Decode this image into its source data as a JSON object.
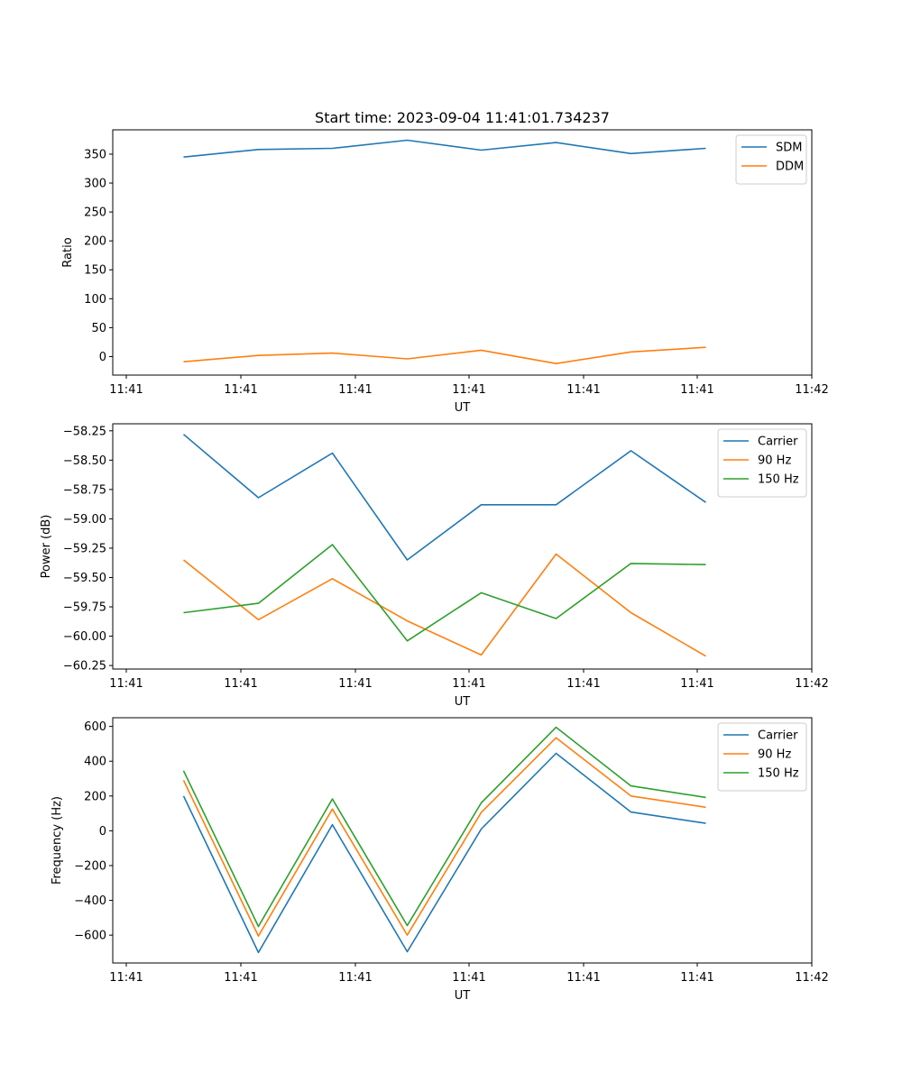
{
  "chart_data": [
    {
      "type": "line",
      "title": "Start time: 2023-09-04 11:41:01.734237",
      "xlabel": "UT",
      "ylabel": "Ratio",
      "x_tick_labels": [
        "11:41",
        "11:41",
        "11:41",
        "11:41",
        "11:41",
        "11:41",
        "11:42"
      ],
      "y_ticks": [
        0,
        50,
        100,
        150,
        200,
        250,
        300,
        350
      ],
      "y_tick_labels": [
        "0",
        "50",
        "100",
        "150",
        "200",
        "250",
        "300",
        "350"
      ],
      "ylim": [
        -32,
        392
      ],
      "series": [
        {
          "name": "SDM",
          "color": "#1f77b4",
          "values": [
            345,
            358,
            360,
            374,
            357,
            370,
            351,
            360
          ]
        },
        {
          "name": "DDM",
          "color": "#ff7f0e",
          "values": [
            -9,
            2,
            6,
            -4,
            11,
            -12,
            8,
            16
          ]
        }
      ],
      "legend": "upper right"
    },
    {
      "type": "line",
      "title": "",
      "xlabel": "UT",
      "ylabel": "Power (dB)",
      "x_tick_labels": [
        "11:41",
        "11:41",
        "11:41",
        "11:41",
        "11:41",
        "11:41",
        "11:42"
      ],
      "y_ticks": [
        -60.25,
        -60.0,
        -59.75,
        -59.5,
        -59.25,
        -59.0,
        -58.75,
        -58.5,
        -58.25
      ],
      "y_tick_labels": [
        "−60.25",
        "−60.00",
        "−59.75",
        "−59.50",
        "−59.25",
        "−59.00",
        "−58.75",
        "−58.50",
        "−58.25"
      ],
      "ylim": [
        -60.28,
        -58.19
      ],
      "series": [
        {
          "name": "Carrier",
          "color": "#1f77b4",
          "values": [
            -58.28,
            -58.82,
            -58.44,
            -59.35,
            -58.88,
            -58.88,
            -58.42,
            -58.86
          ]
        },
        {
          "name": "90 Hz",
          "color": "#ff7f0e",
          "values": [
            -59.35,
            -59.86,
            -59.51,
            -59.87,
            -60.16,
            -59.3,
            -59.8,
            -60.17
          ]
        },
        {
          "name": "150 Hz",
          "color": "#2ca02c",
          "values": [
            -59.8,
            -59.72,
            -59.22,
            -60.04,
            -59.63,
            -59.85,
            -59.38,
            -59.39
          ]
        }
      ],
      "legend": "upper right"
    },
    {
      "type": "line",
      "title": "",
      "xlabel": "UT",
      "ylabel": "Frequency (Hz)",
      "x_tick_labels": [
        "11:41",
        "11:41",
        "11:41",
        "11:41",
        "11:41",
        "11:41",
        "11:42"
      ],
      "y_ticks": [
        -600,
        -400,
        -200,
        0,
        200,
        400,
        600
      ],
      "y_tick_labels": [
        "−600",
        "−400",
        "−200",
        "0",
        "200",
        "400",
        "600"
      ],
      "ylim": [
        -760,
        650
      ],
      "series": [
        {
          "name": "Carrier",
          "color": "#1f77b4",
          "values": [
            200,
            -700,
            35,
            -695,
            10,
            445,
            108,
            43
          ]
        },
        {
          "name": "90 Hz",
          "color": "#ff7f0e",
          "values": [
            290,
            -605,
            125,
            -600,
            105,
            535,
            200,
            135
          ]
        },
        {
          "name": "150 Hz",
          "color": "#2ca02c",
          "values": [
            345,
            -550,
            183,
            -545,
            160,
            595,
            258,
            192
          ]
        }
      ],
      "legend": "upper right"
    }
  ]
}
